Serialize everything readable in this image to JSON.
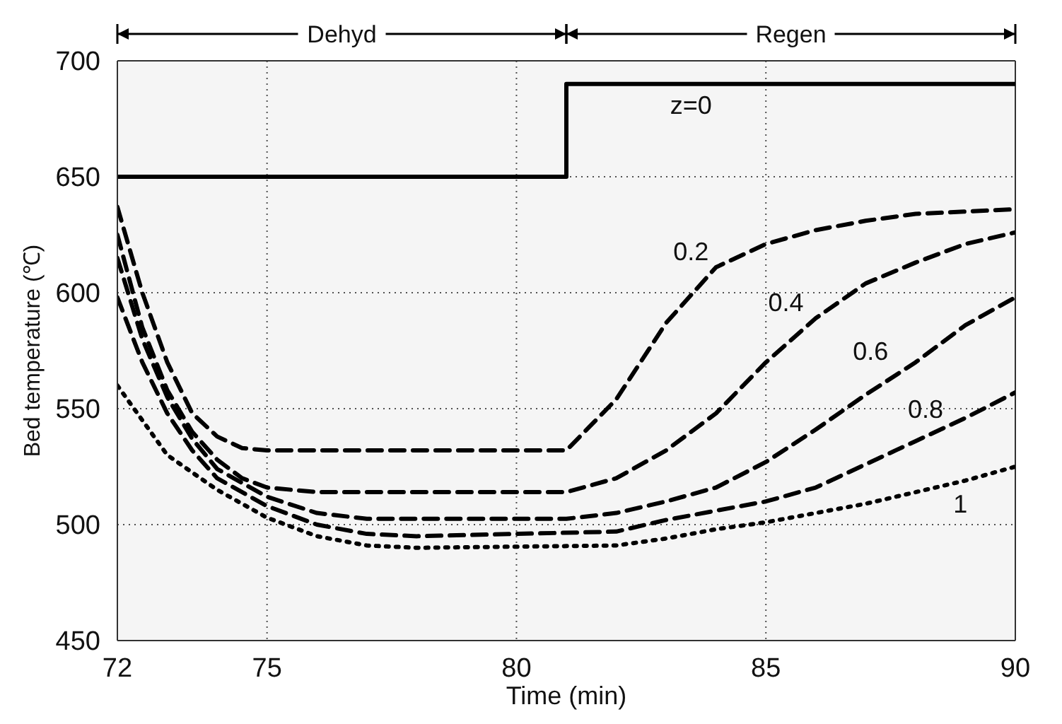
{
  "chart_data": {
    "type": "line",
    "xlabel": "Time (min)",
    "ylabel": "Bed temperature (℃)",
    "xlim": [
      72,
      90
    ],
    "ylim": [
      450,
      700
    ],
    "xticks": [
      72,
      75,
      80,
      85,
      90
    ],
    "yticks": [
      450,
      500,
      550,
      600,
      650,
      700
    ],
    "grid": true,
    "marker": "none",
    "series": [
      {
        "name": "z=0",
        "color": "#000000",
        "line_style": "solid",
        "x": [
          72,
          81,
          81,
          90
        ],
        "values": [
          650,
          650,
          690,
          690
        ]
      },
      {
        "name": "0.2",
        "color": "#000000",
        "line_style": "dashed",
        "x": [
          72,
          72.5,
          73,
          73.5,
          74,
          74.5,
          75,
          81,
          82,
          83,
          84,
          85,
          86,
          87,
          88,
          89,
          90
        ],
        "values": [
          637,
          600,
          570,
          548,
          538,
          533,
          532,
          532,
          554,
          587,
          611,
          621,
          627,
          631,
          634,
          635,
          636
        ]
      },
      {
        "name": "0.4",
        "color": "#000000",
        "line_style": "dashed",
        "x": [
          72,
          72.5,
          73,
          73.5,
          74,
          74.5,
          75,
          76,
          81,
          82,
          83,
          84,
          85,
          86,
          87,
          88,
          89,
          90
        ],
        "values": [
          625,
          585,
          558,
          540,
          528,
          520,
          516,
          514,
          514,
          520,
          532,
          548,
          570,
          589,
          604,
          613,
          621,
          626
        ]
      },
      {
        "name": "0.6",
        "color": "#000000",
        "line_style": "dashed",
        "x": [
          72,
          72.5,
          73,
          73.5,
          74,
          75,
          76,
          77,
          81,
          82,
          83,
          84,
          85,
          86,
          87,
          88,
          89,
          90
        ],
        "values": [
          615,
          580,
          555,
          537,
          524,
          512,
          505,
          502.5,
          502.5,
          505,
          510,
          516,
          527,
          541,
          556,
          570,
          586,
          598
        ]
      },
      {
        "name": "0.8",
        "color": "#000000",
        "line_style": "dashed",
        "x": [
          72,
          72.5,
          73,
          73.5,
          74,
          75,
          76,
          77,
          78,
          82,
          83,
          84,
          85,
          86,
          87,
          88,
          89,
          90
        ],
        "values": [
          598,
          570,
          548,
          532,
          520,
          508,
          500,
          496,
          495,
          497,
          502,
          506,
          510,
          516,
          526,
          536,
          546,
          557
        ]
      },
      {
        "name": "1",
        "color": "#000000",
        "line_style": "dotted",
        "x": [
          72,
          72.5,
          73,
          74,
          75,
          76,
          77,
          78,
          82,
          83,
          84,
          85,
          86,
          87,
          88,
          89,
          90
        ],
        "values": [
          560,
          545,
          530,
          515,
          503,
          495,
          491,
          490,
          491,
          494,
          498,
          501,
          505,
          509,
          514,
          519,
          525
        ]
      }
    ],
    "bands": [
      {
        "axis": "x",
        "from": 72,
        "to": 81,
        "label": "Dehyd"
      },
      {
        "axis": "x",
        "from": 81,
        "to": 90,
        "label": "Regen"
      }
    ]
  }
}
